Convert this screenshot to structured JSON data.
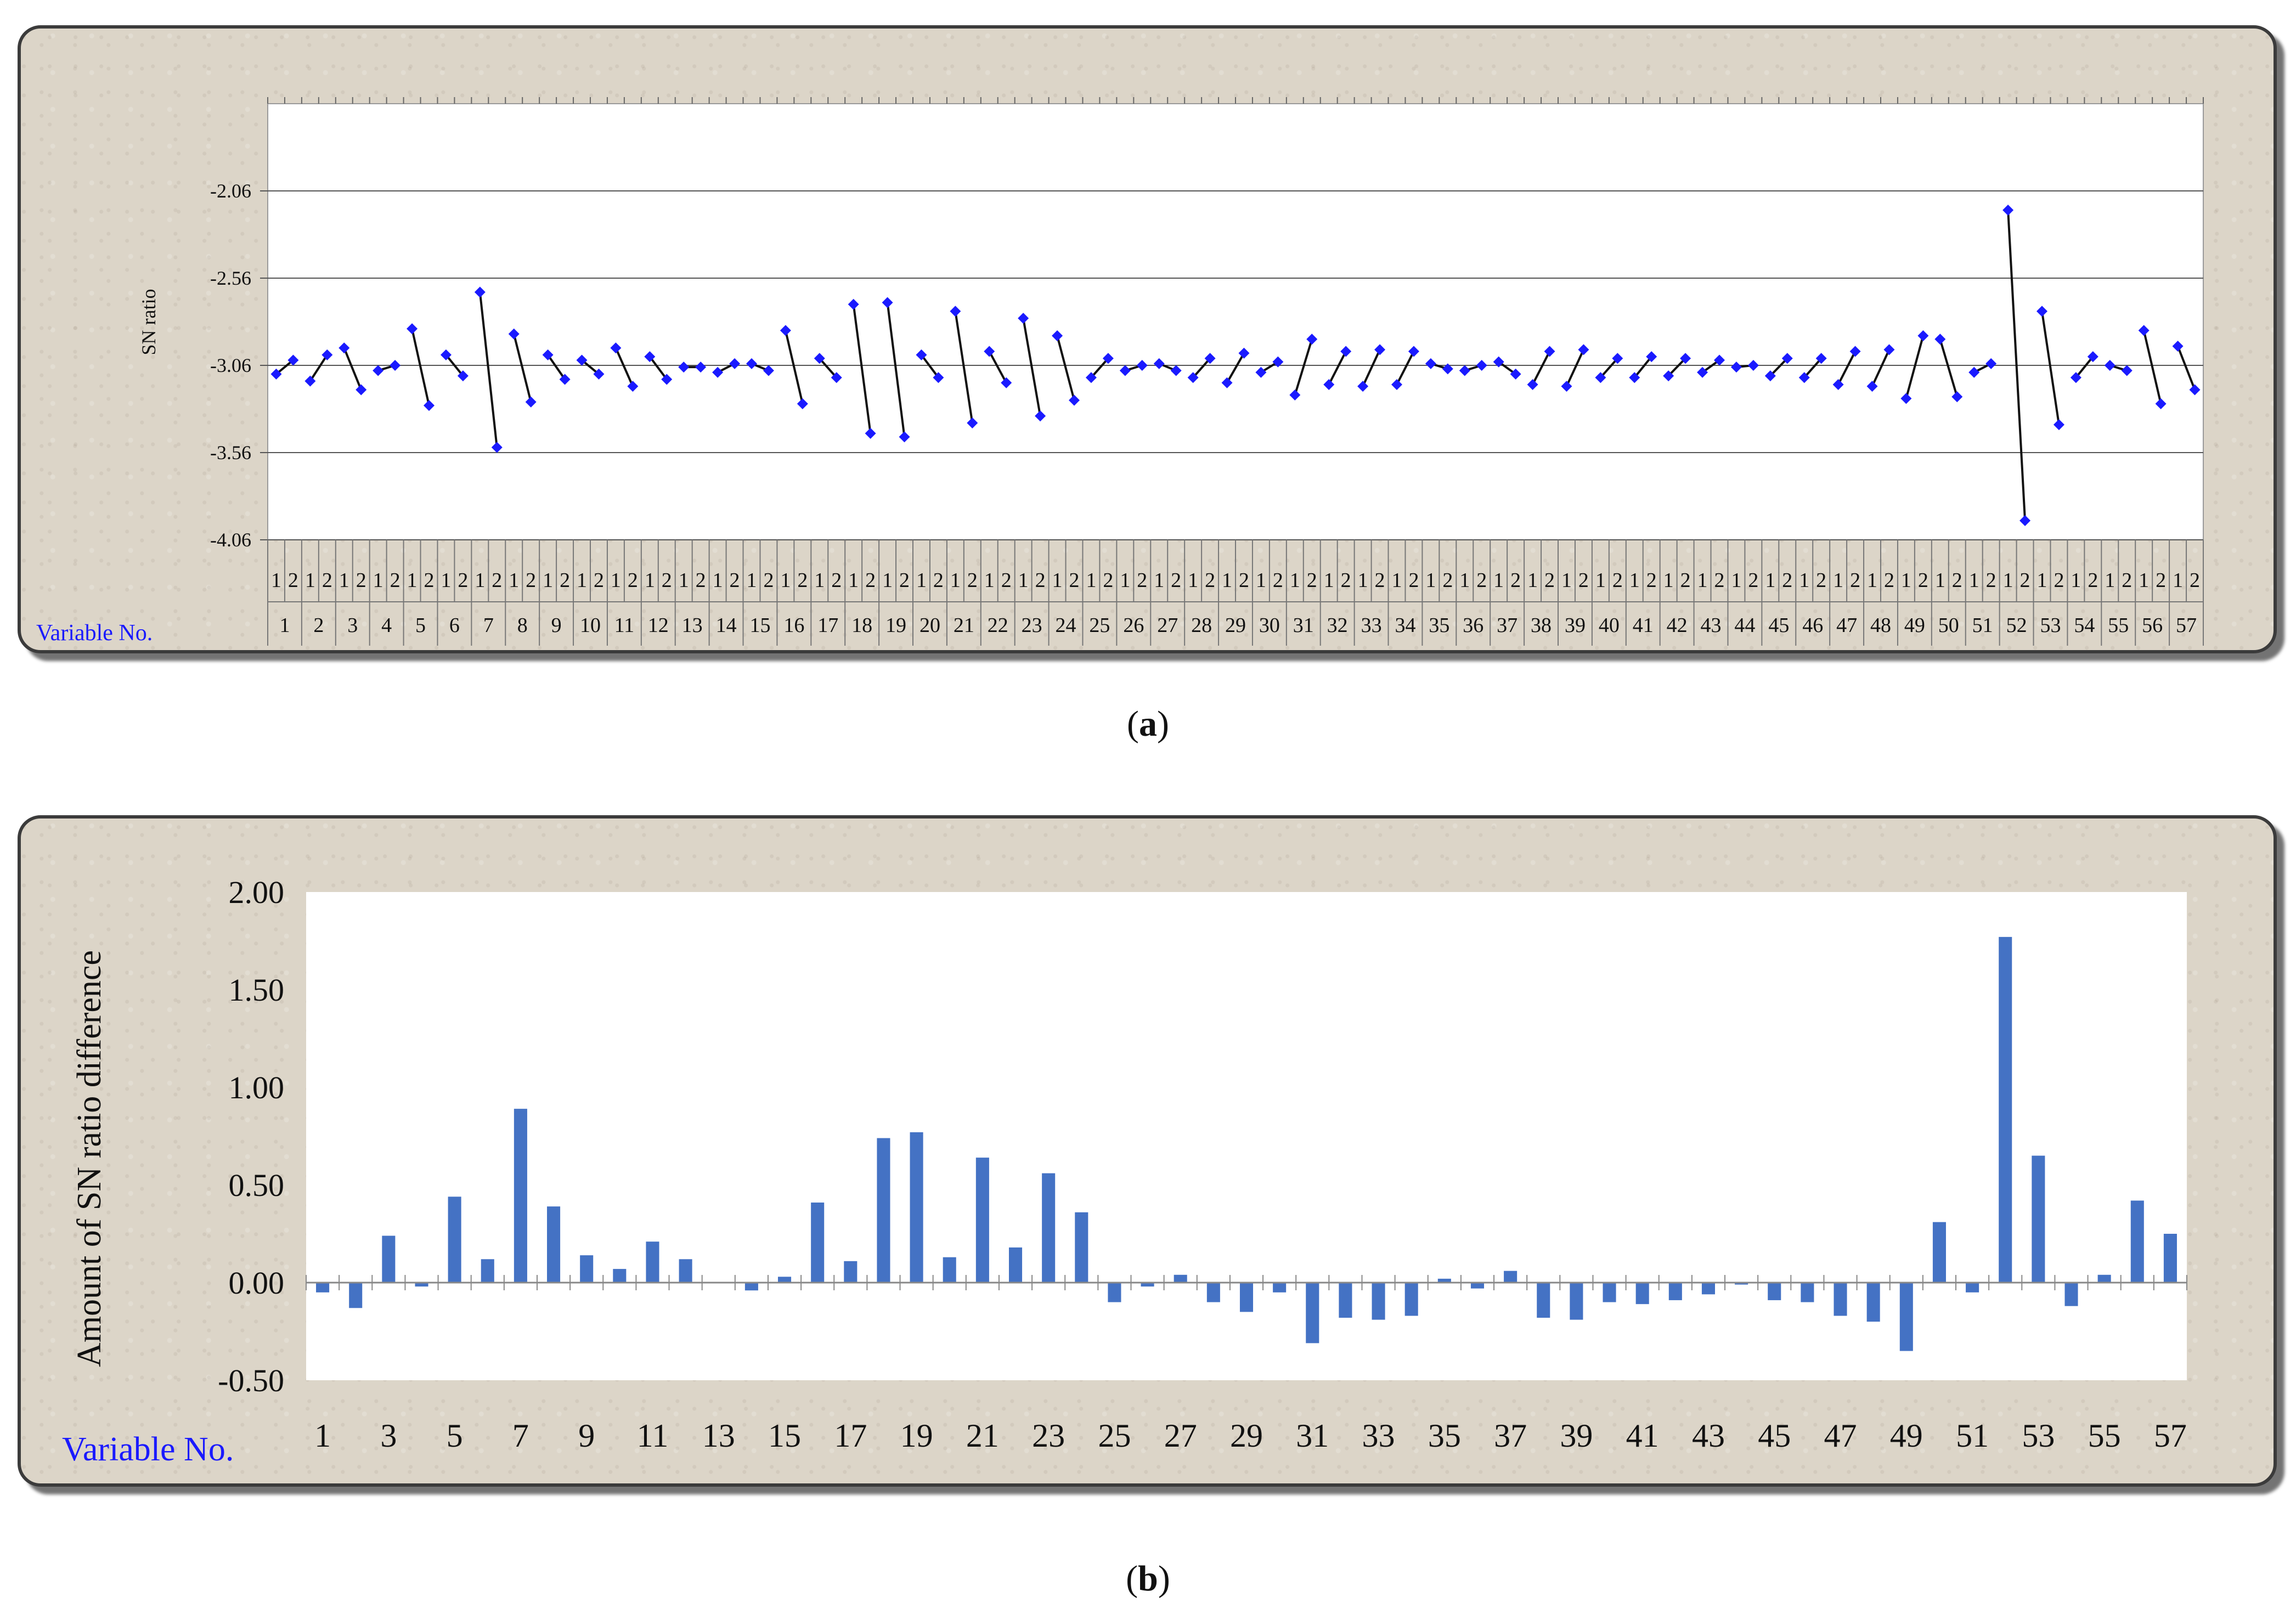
{
  "chart_data": [
    {
      "type": "line",
      "ylabel": "SN ratio",
      "xlabel": "Variable No.",
      "ylim": [
        -4.06,
        -1.56
      ],
      "yticks": [
        "-2.06",
        "-2.56",
        "-3.06",
        "-3.56",
        "-4.06"
      ],
      "ytick_values": [
        -2.06,
        -2.56,
        -3.06,
        -3.56,
        -4.06
      ],
      "level_labels": [
        "1",
        "2"
      ],
      "categories": [
        "1",
        "2",
        "3",
        "4",
        "5",
        "6",
        "7",
        "8",
        "9",
        "10",
        "11",
        "12",
        "13",
        "14",
        "15",
        "16",
        "17",
        "18",
        "19",
        "20",
        "21",
        "22",
        "23",
        "24",
        "25",
        "26",
        "27",
        "28",
        "29",
        "30",
        "31",
        "32",
        "33",
        "34",
        "35",
        "36",
        "37",
        "38",
        "39",
        "40",
        "41",
        "42",
        "43",
        "44",
        "45",
        "46",
        "47",
        "48",
        "49",
        "50",
        "51",
        "52",
        "53",
        "54",
        "55",
        "56",
        "57"
      ],
      "series": [
        {
          "values": [
            [
              -3.11,
              -3.03
            ],
            [
              -3.15,
              -3.0
            ],
            [
              -2.96,
              -3.2
            ],
            [
              -3.09,
              -3.06
            ],
            [
              -2.85,
              -3.29
            ],
            [
              -3.0,
              -3.12
            ],
            [
              -2.64,
              -3.53
            ],
            [
              -2.88,
              -3.27
            ],
            [
              -3.0,
              -3.14
            ],
            [
              -3.03,
              -3.11
            ],
            [
              -2.96,
              -3.18
            ],
            [
              -3.01,
              -3.14
            ],
            [
              -3.07,
              -3.07
            ],
            [
              -3.1,
              -3.05
            ],
            [
              -3.05,
              -3.09
            ],
            [
              -2.86,
              -3.28
            ],
            [
              -3.02,
              -3.13
            ],
            [
              -2.71,
              -3.45
            ],
            [
              -2.7,
              -3.47
            ],
            [
              -3.0,
              -3.13
            ],
            [
              -2.75,
              -3.39
            ],
            [
              -2.98,
              -3.16
            ],
            [
              -2.79,
              -3.35
            ],
            [
              -2.89,
              -3.26
            ],
            [
              -3.13,
              -3.02
            ],
            [
              -3.09,
              -3.06
            ],
            [
              -3.05,
              -3.09
            ],
            [
              -3.13,
              -3.02
            ],
            [
              -3.16,
              -2.99
            ],
            [
              -3.1,
              -3.04
            ],
            [
              -3.23,
              -2.91
            ],
            [
              -3.17,
              -2.98
            ],
            [
              -3.18,
              -2.97
            ],
            [
              -3.17,
              -2.98
            ],
            [
              -3.05,
              -3.08
            ],
            [
              -3.09,
              -3.06
            ],
            [
              -3.04,
              -3.11
            ],
            [
              -3.17,
              -2.98
            ],
            [
              -3.18,
              -2.97
            ],
            [
              -3.13,
              -3.02
            ],
            [
              -3.13,
              -3.01
            ],
            [
              -3.12,
              -3.02
            ],
            [
              -3.1,
              -3.03
            ],
            [
              -3.07,
              -3.06
            ],
            [
              -3.12,
              -3.02
            ],
            [
              -3.13,
              -3.02
            ],
            [
              -3.17,
              -2.98
            ],
            [
              -3.18,
              -2.97
            ],
            [
              -3.25,
              -2.89
            ],
            [
              -2.91,
              -3.24
            ],
            [
              -3.1,
              -3.05
            ],
            [
              -2.17,
              -3.95
            ],
            [
              -2.75,
              -3.4
            ],
            [
              -3.13,
              -3.01
            ],
            [
              -3.06,
              -3.09
            ],
            [
              -2.86,
              -3.28
            ],
            [
              -2.95,
              -3.2
            ]
          ]
        }
      ]
    },
    {
      "type": "bar",
      "ylabel": "Amount of SN ratio difference",
      "xlabel": "Variable No.",
      "ylim": [
        -0.5,
        2.0
      ],
      "yticks": [
        "2.00",
        "1.50",
        "1.00",
        "0.50",
        "0.00",
        "-0.50"
      ],
      "ytick_values": [
        2.0,
        1.5,
        1.0,
        0.5,
        0.0,
        -0.5
      ],
      "xtick_labels": [
        "1",
        "3",
        "5",
        "7",
        "9",
        "11",
        "13",
        "15",
        "17",
        "19",
        "21",
        "23",
        "25",
        "27",
        "29",
        "31",
        "33",
        "35",
        "37",
        "39",
        "41",
        "43",
        "45",
        "47",
        "49",
        "51",
        "53",
        "55",
        "57"
      ],
      "categories": [
        "1",
        "2",
        "3",
        "4",
        "5",
        "6",
        "7",
        "8",
        "9",
        "10",
        "11",
        "12",
        "13",
        "14",
        "15",
        "16",
        "17",
        "18",
        "19",
        "20",
        "21",
        "22",
        "23",
        "24",
        "25",
        "26",
        "27",
        "28",
        "29",
        "30",
        "31",
        "32",
        "33",
        "34",
        "35",
        "36",
        "37",
        "38",
        "39",
        "40",
        "41",
        "42",
        "43",
        "44",
        "45",
        "46",
        "47",
        "48",
        "49",
        "50",
        "51",
        "52",
        "53",
        "54",
        "55",
        "56",
        "57"
      ],
      "values": [
        -0.05,
        -0.13,
        0.24,
        -0.02,
        0.44,
        0.12,
        0.89,
        0.39,
        0.14,
        0.07,
        0.21,
        0.12,
        0.0,
        -0.04,
        0.03,
        0.41,
        0.11,
        0.74,
        0.77,
        0.13,
        0.64,
        0.18,
        0.56,
        0.36,
        -0.1,
        -0.02,
        0.04,
        -0.1,
        -0.15,
        -0.05,
        -0.31,
        -0.18,
        -0.19,
        -0.17,
        0.02,
        -0.03,
        0.06,
        -0.18,
        -0.19,
        -0.1,
        -0.11,
        -0.09,
        -0.06,
        -0.01,
        -0.09,
        -0.1,
        -0.17,
        -0.2,
        -0.35,
        0.31,
        -0.05,
        1.77,
        0.65,
        -0.12,
        0.04,
        0.42,
        0.25
      ],
      "color": "#4472c4"
    }
  ],
  "captions": {
    "a": "a",
    "b": "b"
  }
}
